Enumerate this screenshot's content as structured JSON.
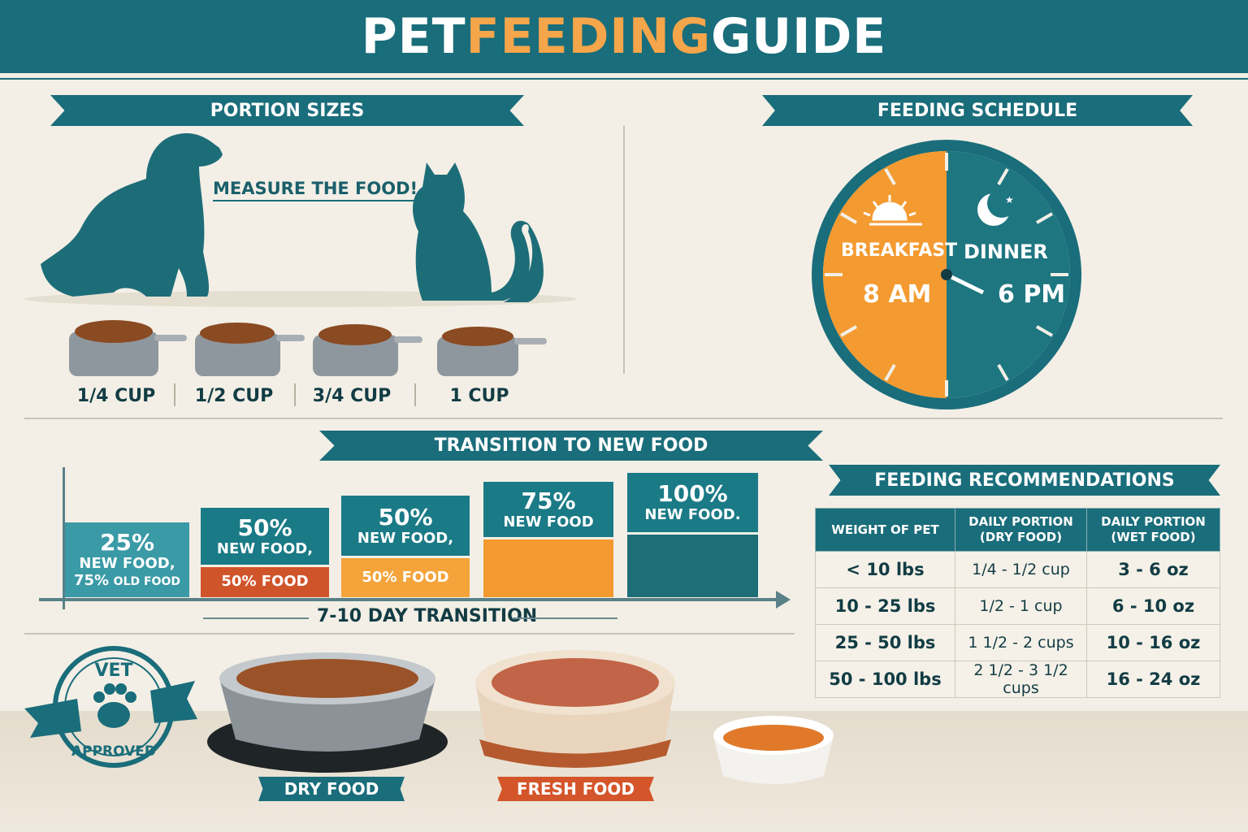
{
  "title": {
    "part1": "PET ",
    "part2": "FEEDING",
    "part3": " GUIDE"
  },
  "portion_sizes": {
    "heading": "PORTION SIZES",
    "callout": "MEASURE THE FOOD!",
    "cups": [
      "1/4 CUP",
      "1/2 CUP",
      "3/4 CUP",
      "1 CUP"
    ]
  },
  "schedule": {
    "heading": "FEEDING SCHEDULE",
    "breakfast": "BREAKFAST",
    "breakfast_time": "8 AM",
    "dinner": "DINNER",
    "dinner_time": "6 PM"
  },
  "transition": {
    "heading": "TRANSITION TO NEW FOOD",
    "steps": [
      {
        "pct": "25%",
        "line1": "NEW FOOD,",
        "line2": "75%",
        "line2b": "OLD FOOD"
      },
      {
        "pct": "50%",
        "line1": "NEW FOOD,",
        "bottom": "50% FOOD"
      },
      {
        "pct": "50%",
        "line1": "NEW FOOD,",
        "bottom": "50% FOOD"
      },
      {
        "pct": "75%",
        "line1": "NEW FOOD"
      },
      {
        "pct": "100%",
        "line1": "NEW FOOD."
      }
    ],
    "axis_label": "7-10 DAY TRANSITION"
  },
  "recommendations": {
    "heading": "FEEDING RECOMMENDATIONS",
    "columns": [
      "WEIGHT OF PET",
      "DAILY PORTION (DRY FOOD)",
      "DAILY PORTION (WET FOOD)"
    ],
    "rows": [
      [
        "< 10 lbs",
        "1/4 - 1/2 cup",
        "3 - 6 oz"
      ],
      [
        "10 - 25 lbs",
        "1/2 - 1 cup",
        "6 - 10 oz"
      ],
      [
        "25 - 50 lbs",
        "1 1/2 - 2 cups",
        "10 - 16 oz"
      ],
      [
        "50 - 100 lbs",
        "2 1/2 - 3 1/2 cups",
        "16 - 24 oz"
      ]
    ]
  },
  "stamp": {
    "top": "VET",
    "bottom": "APPROVED"
  },
  "foods": {
    "dry": "DRY FOOD",
    "fresh": "FRESH FOOD"
  },
  "colors": {
    "teal": "#1a6d7a",
    "orange": "#f5a54a",
    "red_orange": "#d4552a",
    "background": "#f3efe6"
  }
}
